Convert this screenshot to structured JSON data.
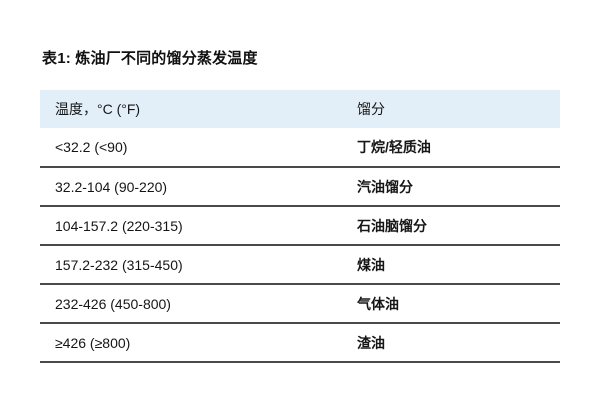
{
  "table": {
    "title": "表1: 炼油厂不同的馏分蒸发温度",
    "columns": [
      {
        "label": "温度，°C (°F)"
      },
      {
        "label": "馏分"
      }
    ],
    "rows": [
      {
        "temperature": "<32.2 (<90)",
        "fraction": "丁烷/轻质油"
      },
      {
        "temperature": "32.2-104 (90-220)",
        "fraction": "汽油馏分"
      },
      {
        "temperature": "104-157.2 (220-315)",
        "fraction": "石油脑馏分"
      },
      {
        "temperature": "157.2-232 (315-450)",
        "fraction": "煤油"
      },
      {
        "temperature": "232-426 (450-800)",
        "fraction": "气体油"
      },
      {
        "temperature": "≥426 (≥800)",
        "fraction": "渣油"
      }
    ],
    "colors": {
      "header_bg": "#e3eff8",
      "divider": "#4a4a4a",
      "text": "#161616",
      "background": "#ffffff"
    }
  }
}
